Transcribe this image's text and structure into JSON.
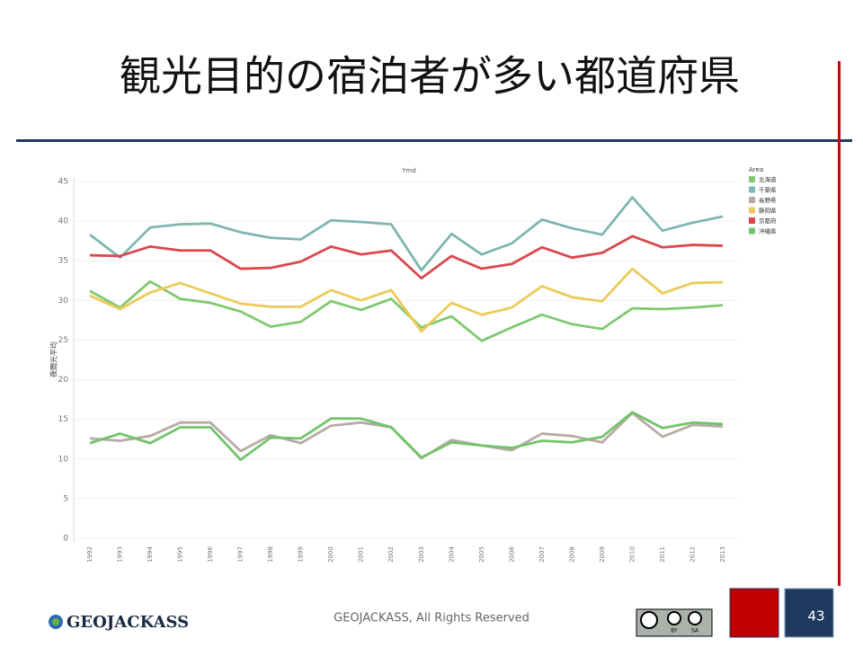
{
  "slide": {
    "title": "観光目的の宿泊者が多い都道府県",
    "footer": "GEOJACKASS, All Rights Reserved",
    "logo": "GEOJACKASS",
    "page_number": "43",
    "license": [
      "BY",
      "SA"
    ]
  },
  "chart_data": {
    "type": "line",
    "title": "Ymd",
    "y_label": "夜間光平均",
    "legend_title": "Area",
    "legend_position": "right",
    "categories": [
      "1992",
      "1993",
      "1994",
      "1995",
      "1996",
      "1997",
      "1998",
      "1999",
      "2000",
      "2001",
      "2002",
      "2003",
      "2004",
      "2005",
      "2006",
      "2007",
      "2008",
      "2009",
      "2010",
      "2011",
      "2012",
      "2013"
    ],
    "ylim": [
      0,
      45
    ],
    "yticks": [
      0,
      5,
      10,
      15,
      20,
      25,
      30,
      35,
      40,
      45
    ],
    "grid": true,
    "series": [
      {
        "name": "北海道",
        "color": "#80c970",
        "values": [
          31.2,
          29.1,
          32.4,
          30.2,
          29.7,
          28.6,
          26.7,
          27.3,
          29.9,
          28.8,
          30.2,
          26.6,
          28.0,
          24.9,
          26.6,
          28.2,
          27.0,
          26.4,
          29.0,
          28.9,
          29.1,
          29.4
        ]
      },
      {
        "name": "千葉県",
        "color": "#7fb7b0",
        "values": [
          38.3,
          35.4,
          39.2,
          39.6,
          39.7,
          38.6,
          37.9,
          37.7,
          40.1,
          39.9,
          39.6,
          33.8,
          38.4,
          35.8,
          37.2,
          40.2,
          39.1,
          38.3,
          43.0,
          38.8,
          39.8,
          40.6
        ]
      },
      {
        "name": "長野県",
        "color": "#b8aaa6",
        "values": [
          12.6,
          12.3,
          12.9,
          14.6,
          14.6,
          11.0,
          13.0,
          12.0,
          14.2,
          14.6,
          14.0,
          10.1,
          12.4,
          11.7,
          11.1,
          13.2,
          12.9,
          12.1,
          15.8,
          12.8,
          14.3,
          14.1
        ]
      },
      {
        "name": "静岡県",
        "color": "#eccb5a",
        "values": [
          30.6,
          28.9,
          31.0,
          32.2,
          30.9,
          29.6,
          29.2,
          29.2,
          31.3,
          30.0,
          31.3,
          26.1,
          29.7,
          28.2,
          29.1,
          31.8,
          30.4,
          29.9,
          34.0,
          30.9,
          32.2,
          32.3
        ]
      },
      {
        "name": "京都府",
        "color": "#d9484f",
        "values": [
          35.7,
          35.6,
          36.8,
          36.3,
          36.3,
          34.0,
          34.1,
          34.9,
          36.8,
          35.8,
          36.3,
          32.8,
          35.6,
          34.0,
          34.6,
          36.7,
          35.4,
          36.0,
          38.1,
          36.7,
          37.0,
          36.9
        ]
      },
      {
        "name": "沖縄県",
        "color": "#72c46a",
        "values": [
          12.0,
          13.2,
          12.0,
          14.0,
          14.0,
          9.9,
          12.7,
          12.6,
          15.1,
          15.1,
          14.0,
          10.2,
          12.1,
          11.7,
          11.4,
          12.3,
          12.1,
          12.8,
          15.9,
          13.9,
          14.6,
          14.4
        ]
      }
    ]
  }
}
